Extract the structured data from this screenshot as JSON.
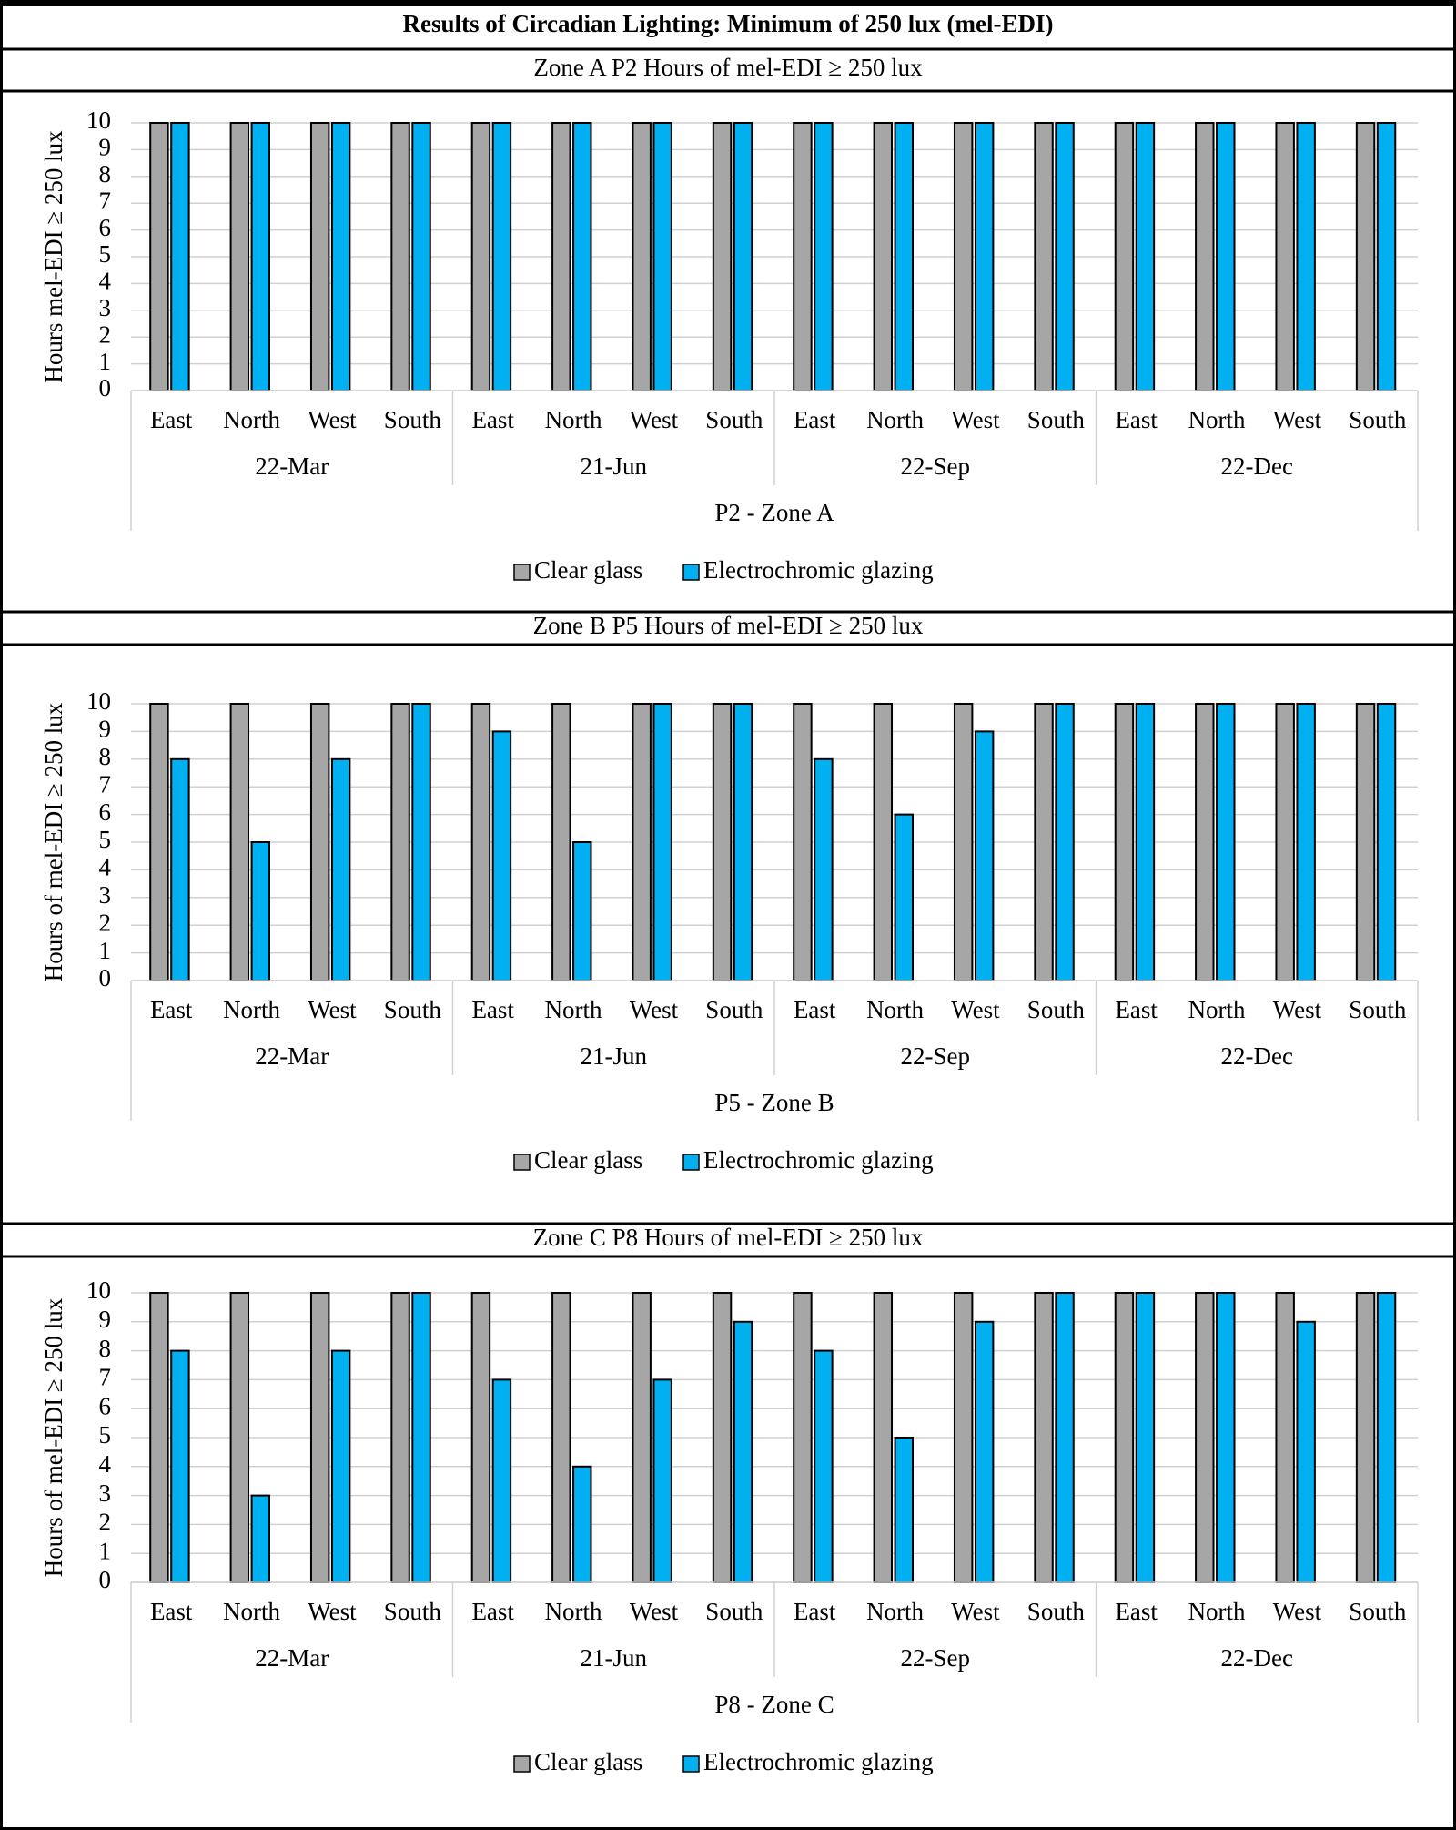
{
  "title": "Results of Circadian Lighting: Minimum of 250 lux (mel-EDI)",
  "chart_data": [
    {
      "type": "bar",
      "title": "Zone A P2 Hours of mel-EDI ≥ 250 lux",
      "y_label": "Hours mel-EDI ≥ 250 lux",
      "categories": [
        "East",
        "North",
        "West",
        "South",
        "East",
        "North",
        "West",
        "South",
        "East",
        "North",
        "West",
        "South",
        "East",
        "North",
        "West",
        "South"
      ],
      "groups": [
        "22-Mar",
        "21-Jun",
        "22-Sep",
        "22-Dec"
      ],
      "group_label": "P2 - Zone A",
      "series": [
        {
          "name": "Clear glass",
          "color": "#a6a6a6",
          "values": [
            10,
            10,
            10,
            10,
            10,
            10,
            10,
            10,
            10,
            10,
            10,
            10,
            10,
            10,
            10,
            10
          ]
        },
        {
          "name": "Electrochromic glazing",
          "color": "#00b0f0",
          "values": [
            10,
            10,
            10,
            10,
            10,
            10,
            10,
            10,
            10,
            10,
            10,
            10,
            10,
            10,
            10,
            10
          ]
        }
      ],
      "ylim": [
        0,
        10
      ],
      "yticks": [
        0,
        1,
        2,
        3,
        4,
        5,
        6,
        7,
        8,
        9,
        10
      ],
      "grid": true
    },
    {
      "type": "bar",
      "title": "Zone B P5 Hours of mel-EDI ≥ 250 lux",
      "y_label": "Hours of mel-EDI ≥ 250 lux",
      "categories": [
        "East",
        "North",
        "West",
        "South",
        "East",
        "North",
        "West",
        "South",
        "East",
        "North",
        "West",
        "South",
        "East",
        "North",
        "West",
        "South"
      ],
      "groups": [
        "22-Mar",
        "21-Jun",
        "22-Sep",
        "22-Dec"
      ],
      "group_label": "P5 - Zone B",
      "series": [
        {
          "name": "Clear glass",
          "color": "#a6a6a6",
          "values": [
            10,
            10,
            10,
            10,
            10,
            10,
            10,
            10,
            10,
            10,
            10,
            10,
            10,
            10,
            10,
            10
          ]
        },
        {
          "name": "Electrochromic glazing",
          "color": "#00b0f0",
          "values": [
            8,
            5,
            8,
            10,
            9,
            5,
            10,
            10,
            8,
            6,
            9,
            10,
            10,
            10,
            10,
            10
          ]
        }
      ],
      "ylim": [
        0,
        10
      ],
      "yticks": [
        0,
        1,
        2,
        3,
        4,
        5,
        6,
        7,
        8,
        9,
        10
      ],
      "grid": true
    },
    {
      "type": "bar",
      "title": "Zone C P8 Hours of mel-EDI ≥ 250 lux",
      "y_label": "Hours of mel-EDI ≥ 250 lux",
      "categories": [
        "East",
        "North",
        "West",
        "South",
        "East",
        "North",
        "West",
        "South",
        "East",
        "North",
        "West",
        "South",
        "East",
        "North",
        "West",
        "South"
      ],
      "groups": [
        "22-Mar",
        "21-Jun",
        "22-Sep",
        "22-Dec"
      ],
      "group_label": "P8 - Zone C",
      "series": [
        {
          "name": "Clear glass",
          "color": "#a6a6a6",
          "values": [
            10,
            10,
            10,
            10,
            10,
            10,
            10,
            10,
            10,
            10,
            10,
            10,
            10,
            10,
            10,
            10
          ]
        },
        {
          "name": "Electrochromic glazing",
          "color": "#00b0f0",
          "values": [
            8,
            3,
            8,
            10,
            7,
            4,
            7,
            9,
            8,
            5,
            9,
            10,
            10,
            10,
            9,
            10
          ]
        }
      ],
      "ylim": [
        0,
        10
      ],
      "yticks": [
        0,
        1,
        2,
        3,
        4,
        5,
        6,
        7,
        8,
        9,
        10
      ],
      "grid": true
    }
  ]
}
